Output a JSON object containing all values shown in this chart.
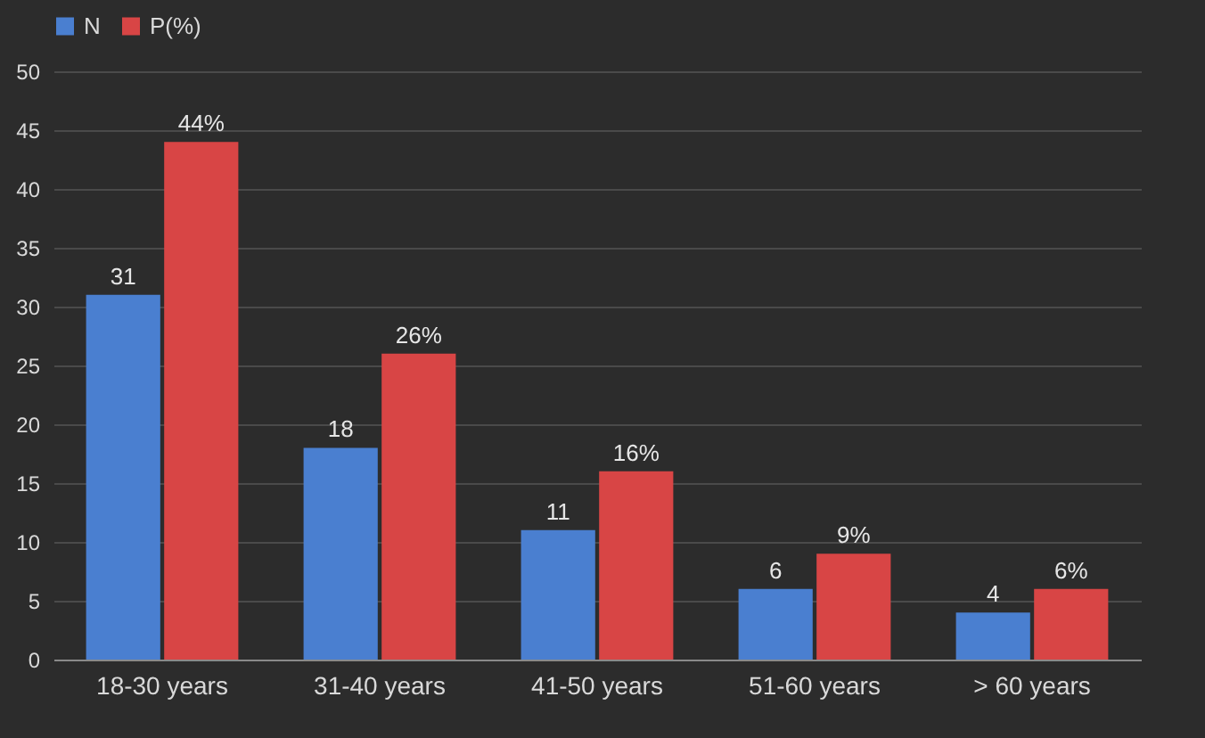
{
  "chart_data": {
    "type": "bar",
    "categories": [
      "18-30 years",
      "31-40 years",
      "41-50 years",
      "51-60 years",
      "> 60 years"
    ],
    "series": [
      {
        "name": "N",
        "color": "#4a7fd0",
        "values": [
          31,
          18,
          11,
          6,
          4
        ],
        "value_labels": [
          "31",
          "18",
          "11",
          "6",
          "4"
        ]
      },
      {
        "name": "P(%)",
        "color": "#d84545",
        "values": [
          44,
          26,
          16,
          9,
          6
        ],
        "value_labels": [
          "44%",
          "26%",
          "16%",
          "9%",
          "6%"
        ]
      }
    ],
    "ylim": [
      0,
      50
    ],
    "yticks": [
      0,
      5,
      10,
      15,
      20,
      25,
      30,
      35,
      40,
      45,
      50
    ],
    "grid": "y",
    "legend": "top"
  }
}
